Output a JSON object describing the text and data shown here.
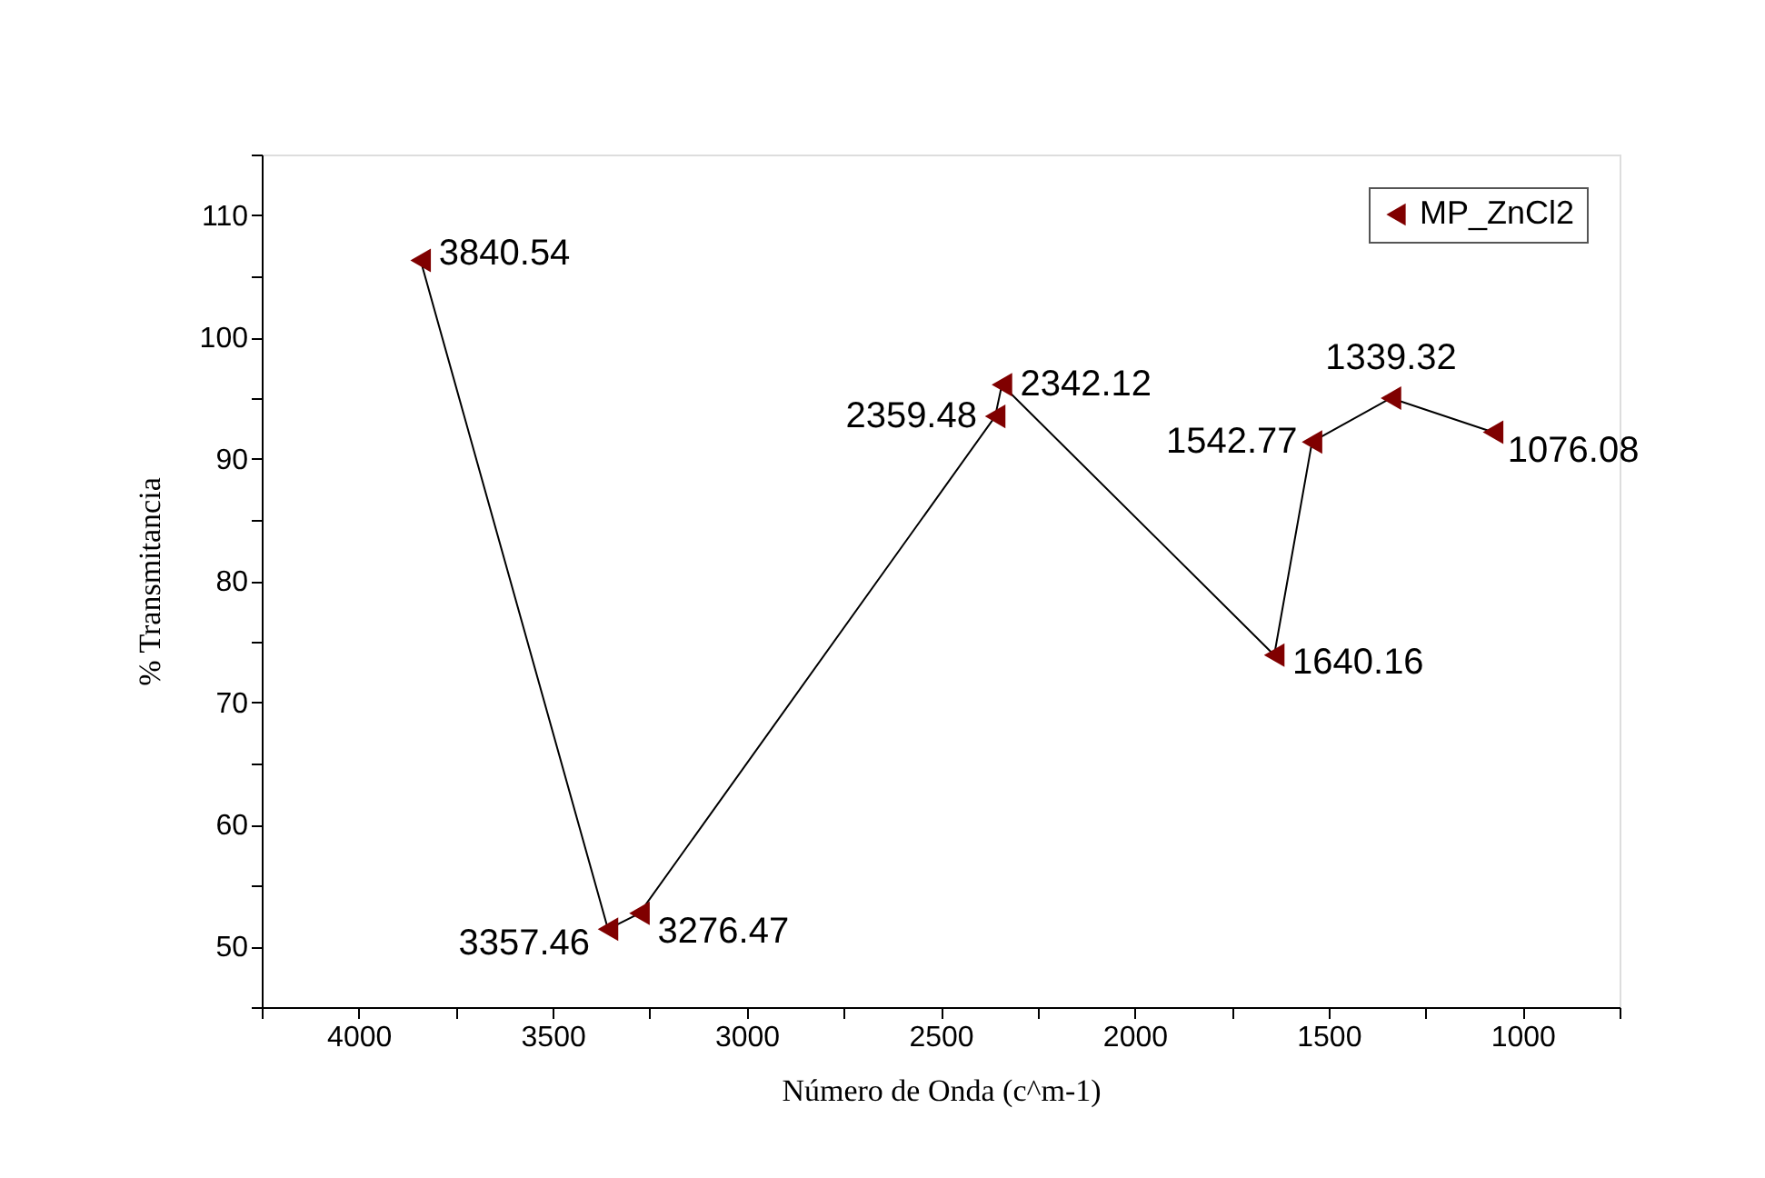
{
  "chart_data": {
    "type": "line",
    "xlabel": "Número de Onda (c^m-1)",
    "ylabel": "% Transmitancia",
    "x": [
      3840.54,
      3357.46,
      3276.47,
      2359.48,
      2342.12,
      1640.16,
      1542.77,
      1339.32,
      1076.08
    ],
    "series": [
      {
        "name": "MP_ZnCl2",
        "color": "#800000",
        "values": [
          106.3,
          51.4,
          52.7,
          93.5,
          96.1,
          73.9,
          91.4,
          95.0,
          92.2
        ]
      }
    ],
    "annotations": [
      {
        "text": "3840.54",
        "x": 3840.54,
        "y": 106.3
      },
      {
        "text": "3357.46",
        "x": 3357.46,
        "y": 51.4
      },
      {
        "text": "3276.47",
        "x": 3276.47,
        "y": 52.7
      },
      {
        "text": "2359.48",
        "x": 2359.48,
        "y": 93.5
      },
      {
        "text": "2342.12",
        "x": 2342.12,
        "y": 96.1
      },
      {
        "text": "1640.16",
        "x": 1640.16,
        "y": 73.9
      },
      {
        "text": "1542.77",
        "x": 1542.77,
        "y": 91.4
      },
      {
        "text": "1339.32",
        "x": 1339.32,
        "y": 95.0
      },
      {
        "text": "1076.08",
        "x": 1076.08,
        "y": 92.2
      }
    ],
    "xlim": [
      4250,
      750
    ],
    "xticks": [
      {
        "value": 4250,
        "label": null
      },
      4000,
      {
        "value": 3750,
        "label": null
      },
      3500,
      {
        "value": 3250,
        "label": null
      },
      3000,
      {
        "value": 2750,
        "label": null
      },
      2500,
      {
        "value": 2250,
        "label": null
      },
      2000,
      {
        "value": 1750,
        "label": null
      },
      1500,
      {
        "value": 1250,
        "label": null
      },
      1000,
      {
        "value": 750,
        "label": null
      }
    ],
    "ylim": [
      45,
      115
    ],
    "yticks": [
      {
        "value": 45,
        "label": null
      },
      50,
      {
        "value": 55,
        "label": null
      },
      60,
      {
        "value": 65,
        "label": null
      },
      70,
      {
        "value": 75,
        "label": null
      },
      80,
      {
        "value": 85,
        "label": null
      },
      90,
      {
        "value": 95,
        "label": null
      },
      100,
      {
        "value": 105,
        "label": null
      },
      110,
      {
        "value": 115,
        "label": null
      }
    ],
    "marker": "triangle",
    "line_style": "solid",
    "grid": false,
    "legend": "top right"
  }
}
